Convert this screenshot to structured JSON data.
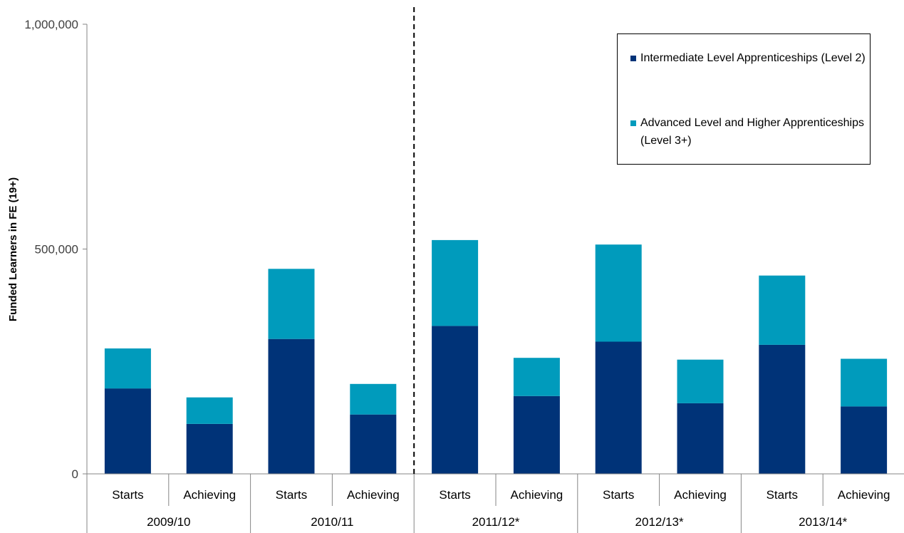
{
  "chart_data": {
    "type": "bar",
    "stacked": true,
    "ylabel": "Funded Learners in FE (19+)",
    "ylim": [
      0,
      1000000
    ],
    "yticks": [
      0,
      500000,
      1000000
    ],
    "ytick_labels": [
      "0",
      "500,000",
      "1,000,000"
    ],
    "grid": false,
    "legend_position": "top-right",
    "groups": [
      "2009/10",
      "2010/11",
      "2011/12*",
      "2012/13*",
      "2013/14*"
    ],
    "categories": [
      "Starts",
      "Achieving",
      "Starts",
      "Achieving",
      "Starts",
      "Achieving",
      "Starts",
      "Achieving",
      "Starts",
      "Achieving"
    ],
    "divider_after_group": 2,
    "series": [
      {
        "name": "Intermediate Level Apprenticeships (Level 2)",
        "color": "#003378",
        "values": [
          190000,
          111000,
          300000,
          132000,
          329000,
          173000,
          294000,
          157000,
          287000,
          150000
        ]
      },
      {
        "name": "Advanced Level and Higher Apprenticeships (Level 3+)",
        "color": "#009bbc",
        "values": [
          89000,
          59000,
          156000,
          68000,
          191000,
          85000,
          216000,
          97000,
          154000,
          106000
        ]
      }
    ]
  }
}
